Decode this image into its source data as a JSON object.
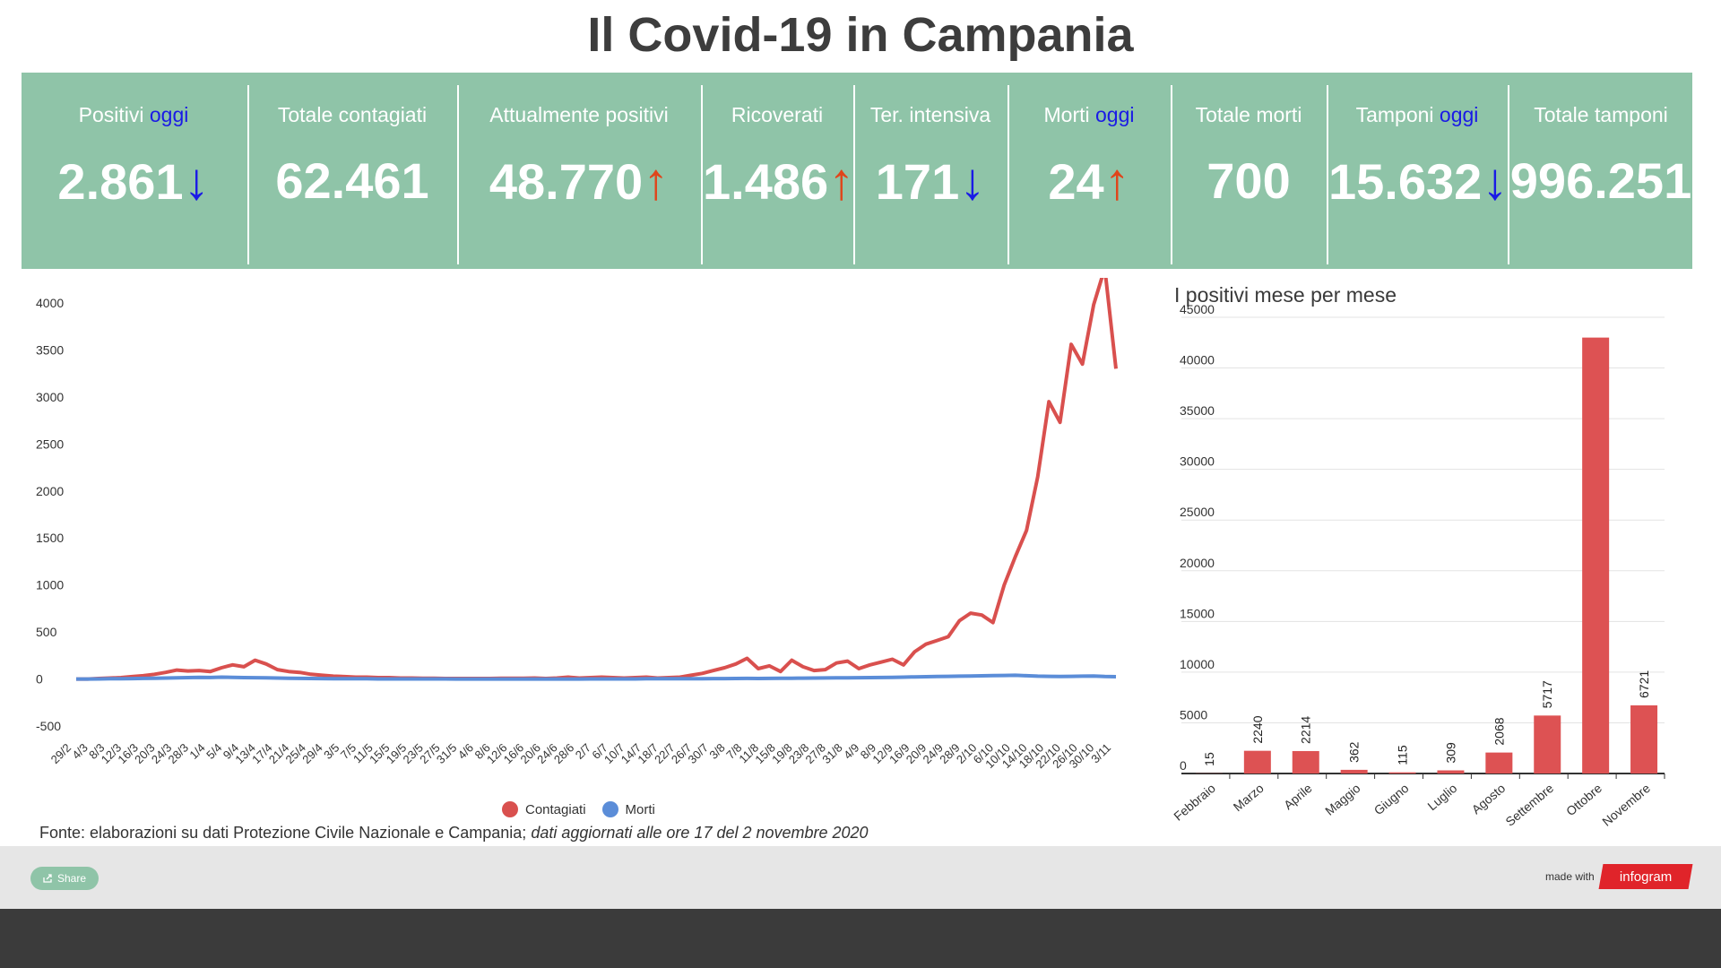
{
  "title": "Il Covid-19 in Campania",
  "stats": [
    {
      "label": "Positivi ",
      "label_hl": "oggi",
      "value": "2.861",
      "arrow": "↓",
      "dir": "down"
    },
    {
      "label": "Totale contagiati",
      "label_hl": "",
      "value": "62.461",
      "arrow": "",
      "dir": ""
    },
    {
      "label": "Attualmente positivi",
      "label_hl": "",
      "value": "48.770",
      "arrow": "↑",
      "dir": "up"
    },
    {
      "label": "Ricoverati",
      "label_hl": "",
      "value": "1.486",
      "arrow": "↑",
      "dir": "up"
    },
    {
      "label": "Ter. intensiva",
      "label_hl": "",
      "value": "171",
      "arrow": "↓",
      "dir": "down"
    },
    {
      "label": "Morti ",
      "label_hl": "oggi",
      "value": "24",
      "arrow": "↑",
      "dir": "up"
    },
    {
      "label": "Totale morti",
      "label_hl": "",
      "value": "700",
      "arrow": "",
      "dir": ""
    },
    {
      "label": "Tamponi ",
      "label_hl": "oggi",
      "value": "15.632",
      "arrow": "↓",
      "dir": "down"
    },
    {
      "label": "Totale tamponi",
      "label_hl": "",
      "value": "996.251",
      "arrow": "",
      "dir": ""
    }
  ],
  "colors": {
    "panel": "#8fc4a8",
    "contagiati": "#d9504e",
    "morti": "#5b8dd8",
    "bars": "#dd5253",
    "down_arrow": "#1a1ae6",
    "up_arrow": "#e0451b"
  },
  "legend": {
    "contagiati": "Contagiati",
    "morti": "Morti"
  },
  "source": {
    "text": "Fonte: elaborazioni su dati Protezione Civile Nazionale e Campania; ",
    "italic": "dati aggiornati alle ore 17 del 2 novembre 2020"
  },
  "footer": {
    "share": "Share",
    "made_with": "made with",
    "brand": "infogram"
  },
  "chart_data": [
    {
      "type": "line",
      "title": "",
      "xlabel": "",
      "ylabel": "",
      "ylim": [
        -500,
        4000
      ],
      "yticks": [
        4000,
        3500,
        3000,
        2500,
        2000,
        1500,
        1000,
        500,
        0,
        -500
      ],
      "x_ticks": [
        "29/2",
        "4/3",
        "8/3",
        "12/3",
        "16/3",
        "20/3",
        "24/3",
        "28/3",
        "1/4",
        "5/4",
        "9/4",
        "13/4",
        "17/4",
        "21/4",
        "25/4",
        "29/4",
        "3/5",
        "7/5",
        "11/5",
        "15/5",
        "19/5",
        "23/5",
        "27/5",
        "31/5",
        "4/6",
        "8/6",
        "12/6",
        "16/6",
        "20/6",
        "24/6",
        "28/6",
        "2/7",
        "6/7",
        "10/7",
        "14/7",
        "18/7",
        "22/7",
        "26/7",
        "30/7",
        "3/8",
        "7/8",
        "11/8",
        "15/8",
        "19/8",
        "23/8",
        "27/8",
        "31/8",
        "4/9",
        "8/9",
        "12/9",
        "16/9",
        "20/9",
        "24/9",
        "28/9",
        "2/10",
        "6/10",
        "10/10",
        "14/10",
        "18/10",
        "22/10",
        "26/10",
        "30/10",
        "3/11"
      ],
      "legend_position": "bottom",
      "series": [
        {
          "name": "Contagiati",
          "color": "#d9504e",
          "values": [
            0,
            0,
            5,
            10,
            15,
            25,
            35,
            50,
            70,
            95,
            85,
            90,
            80,
            120,
            150,
            130,
            200,
            160,
            100,
            80,
            70,
            50,
            40,
            30,
            25,
            20,
            20,
            15,
            15,
            10,
            10,
            8,
            8,
            5,
            5,
            5,
            5,
            5,
            8,
            8,
            8,
            10,
            5,
            10,
            20,
            10,
            15,
            20,
            15,
            10,
            15,
            20,
            10,
            15,
            20,
            40,
            60,
            90,
            120,
            160,
            220,
            110,
            140,
            80,
            200,
            130,
            90,
            100,
            170,
            190,
            110,
            150,
            180,
            210,
            150,
            290,
            370,
            410,
            450,
            620,
            700,
            680,
            600,
            1000,
            1300,
            1580,
            2150,
            2950,
            2730,
            3560,
            3350,
            3980,
            4370,
            3300
          ]
        },
        {
          "name": "Morti",
          "color": "#5b8dd8",
          "values": [
            0,
            0,
            1,
            2,
            3,
            4,
            6,
            8,
            10,
            12,
            15,
            18,
            16,
            20,
            18,
            15,
            14,
            12,
            10,
            8,
            6,
            5,
            4,
            3,
            2,
            2,
            2,
            1,
            1,
            1,
            1,
            1,
            1,
            1,
            0,
            0,
            0,
            0,
            0,
            0,
            0,
            0,
            0,
            0,
            0,
            0,
            1,
            1,
            1,
            1,
            1,
            2,
            2,
            2,
            3,
            2,
            3,
            4,
            4,
            5,
            6,
            5,
            6,
            7,
            8,
            9,
            10,
            11,
            12,
            13,
            14,
            15,
            16,
            18,
            20,
            22,
            24,
            26,
            28,
            30,
            32,
            34,
            36,
            38,
            40,
            35,
            30,
            28,
            26,
            28,
            30,
            32,
            26,
            24
          ]
        }
      ]
    },
    {
      "type": "bar",
      "title": "I positivi mese per mese",
      "xlabel": "",
      "ylabel": "",
      "ylim": [
        0,
        45000
      ],
      "yticks": [
        45000,
        40000,
        35000,
        30000,
        25000,
        20000,
        15000,
        10000,
        5000,
        0
      ],
      "categories": [
        "Febbraio",
        "Marzo",
        "Aprile",
        "Maggio",
        "Giugno",
        "Luglio",
        "Agosto",
        "Settembre",
        "Ottobre",
        "Novembre"
      ],
      "values": [
        15,
        2240,
        2214,
        362,
        115,
        309,
        2068,
        5717,
        43000,
        6721
      ],
      "labels": [
        "15",
        "2240",
        "2214",
        "362",
        "115",
        "309",
        "2068",
        "5717",
        "",
        "6721"
      ]
    }
  ]
}
